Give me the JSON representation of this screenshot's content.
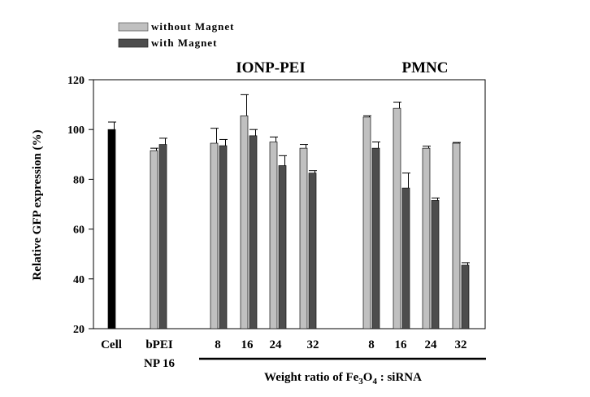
{
  "chart_data": {
    "type": "bar",
    "ylabel": "Relative GFP expression (%)",
    "xlabel": {
      "prefix": "Weight ratio of Fe",
      "sub1": "3",
      "mid": "O",
      "sub2": "4",
      "suffix": " : siRNA"
    },
    "ylim": [
      20,
      120
    ],
    "yticks": [
      "20",
      "40",
      "60",
      "80",
      "100",
      "120"
    ],
    "legend": [
      {
        "name": "without Magnet",
        "color": "#c0c0c0"
      },
      {
        "name": "with Magnet",
        "color": "#4d4d4d"
      }
    ],
    "control": {
      "category": "Cell",
      "value": 100,
      "error": 3,
      "color": "#000000"
    },
    "bpei": {
      "category_line1": "bPEI",
      "category_line2": "NP 16",
      "values": [
        91.5,
        94
      ],
      "errors": [
        1,
        2.5
      ]
    },
    "groups": [
      {
        "title": "IONP-PEI",
        "categories": [
          "8",
          "16",
          "24",
          "32"
        ],
        "series": [
          {
            "name": "without Magnet",
            "values": [
              94.5,
              105.5,
              95,
              92.5
            ],
            "errors": [
              6,
              8.5,
              2,
              1.5
            ]
          },
          {
            "name": "with Magnet",
            "values": [
              93.5,
              97.5,
              85.5,
              82.5
            ],
            "errors": [
              2.5,
              2.5,
              4,
              1
            ]
          }
        ]
      },
      {
        "title": "PMNC",
        "categories": [
          "8",
          "16",
          "24",
          "32"
        ],
        "series": [
          {
            "name": "without Magnet",
            "values": [
              105,
              108.5,
              92.5,
              94.5
            ],
            "errors": [
              0.5,
              2.5,
              0.8,
              0.3
            ]
          },
          {
            "name": "with Magnet",
            "values": [
              92.5,
              76.5,
              71.5,
              45.5
            ],
            "errors": [
              2.5,
              6,
              1,
              1
            ]
          }
        ]
      }
    ]
  }
}
